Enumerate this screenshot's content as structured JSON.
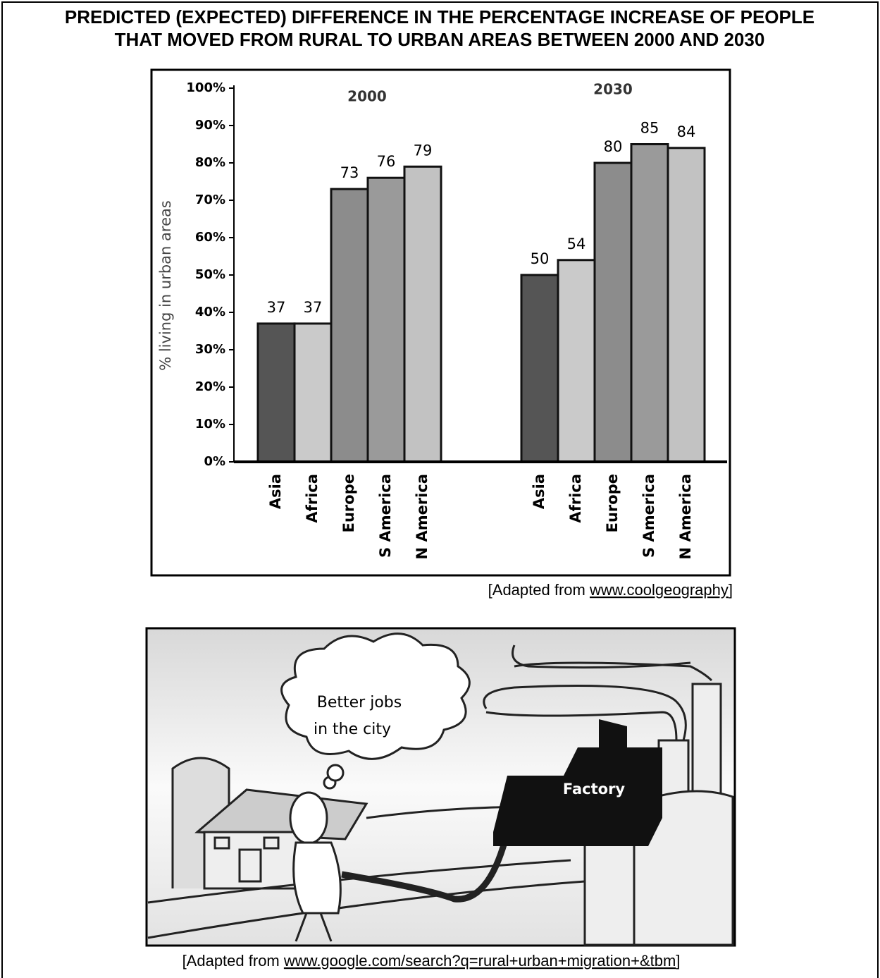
{
  "title_lines": [
    "PREDICTED (EXPECTED) DIFFERENCE IN THE PERCENTAGE INCREASE OF PEOPLE",
    "THAT MOVED FROM RURAL TO URBAN AREAS BETWEEN 2000 AND 2030"
  ],
  "chart_data": {
    "type": "bar",
    "ylabel": "% living in urban areas",
    "categories": [
      "Asia",
      "Africa",
      "Europe",
      "S America",
      "N America"
    ],
    "colors": [
      "#555555",
      "#cacaca",
      "#8c8c8c",
      "#9a9a9a",
      "#c2c2c2"
    ],
    "series": [
      {
        "name": "2000",
        "values": [
          37,
          37,
          73,
          76,
          79
        ]
      },
      {
        "name": "2030",
        "values": [
          50,
          54,
          80,
          85,
          84
        ]
      }
    ],
    "ylim": [
      0,
      100
    ],
    "yticks": [
      {
        "value": 0,
        "label": "0%"
      },
      {
        "value": 10,
        "label": "10%"
      },
      {
        "value": 20,
        "label": "20%"
      },
      {
        "value": 30,
        "label": "30%"
      },
      {
        "value": 40,
        "label": "40%"
      },
      {
        "value": 50,
        "label": "50%"
      },
      {
        "value": 60,
        "label": "60%"
      },
      {
        "value": 70,
        "label": "70%"
      },
      {
        "value": 80,
        "label": "80%"
      },
      {
        "value": 90,
        "label": "90%"
      },
      {
        "value": 100,
        "label": "100%"
      }
    ]
  },
  "source1": {
    "prefix": "[Adapted from ",
    "link": "www.coolgeography",
    "suffix": "]"
  },
  "illustration": {
    "thought_lines": [
      "Better jobs",
      "in the city"
    ],
    "factory_label": "Factory"
  },
  "source2": {
    "prefix": "[Adapted from ",
    "link": "www.google.com/search?q=rural+urban+migration+&tbm",
    "suffix": "]"
  }
}
